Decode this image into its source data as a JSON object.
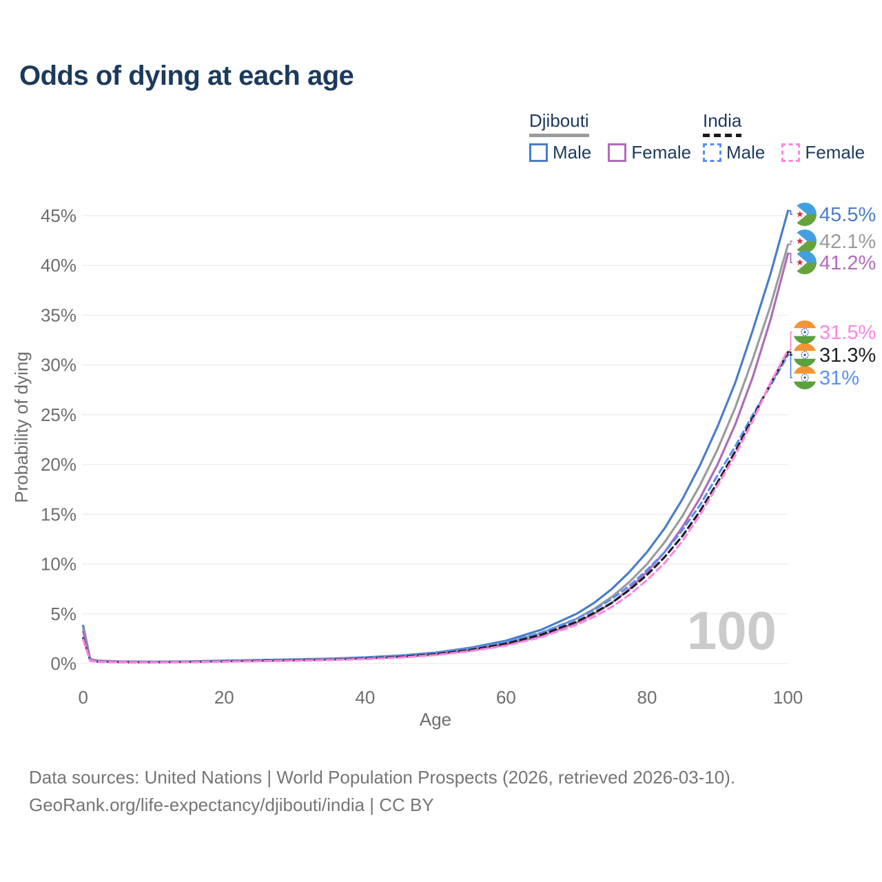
{
  "page": {
    "title": "Odds of dying at each age"
  },
  "legend": {
    "groups": [
      {
        "country": "Djibouti",
        "underline": "solid",
        "underline_color": "#9b9b9b",
        "items": [
          {
            "label": "Male",
            "color": "#4a7dc9",
            "dash": false
          },
          {
            "label": "Female",
            "color": "#b06cb8",
            "dash": false
          }
        ]
      },
      {
        "country": "India",
        "underline": "dashed",
        "underline_color": "#1a1a1a",
        "items": [
          {
            "label": "Male",
            "color": "#5b8ff2",
            "dash": true
          },
          {
            "label": "Female",
            "color": "#ff85e2",
            "dash": true
          }
        ]
      }
    ]
  },
  "chart_data": {
    "type": "line",
    "title": "Odds of dying at each age",
    "xlabel": "Age",
    "ylabel": "Probability of dying",
    "xlim": [
      0,
      100
    ],
    "ylim": [
      0,
      45
    ],
    "grid": "horizontal",
    "legend_position": "top-right",
    "watermark": "100",
    "x_ticks": [
      {
        "v": 0,
        "label": "0"
      },
      {
        "v": 20,
        "label": "20"
      },
      {
        "v": 40,
        "label": "40"
      },
      {
        "v": 60,
        "label": "60"
      },
      {
        "v": 80,
        "label": "80"
      },
      {
        "v": 100,
        "label": "100"
      }
    ],
    "y_ticks": [
      {
        "v": 0,
        "label": "0%"
      },
      {
        "v": 5,
        "label": "5%"
      },
      {
        "v": 10,
        "label": "10%"
      },
      {
        "v": 15,
        "label": "15%"
      },
      {
        "v": 20,
        "label": "20%"
      },
      {
        "v": 25,
        "label": "25%"
      },
      {
        "v": 30,
        "label": "30%"
      },
      {
        "v": 35,
        "label": "35%"
      },
      {
        "v": 40,
        "label": "40%"
      },
      {
        "v": 45,
        "label": "45%"
      }
    ],
    "x": [
      0,
      1,
      2,
      5,
      10,
      15,
      20,
      25,
      30,
      35,
      40,
      45,
      50,
      55,
      60,
      65,
      70,
      72.5,
      75,
      77.5,
      80,
      82.5,
      85,
      87.5,
      90,
      92.5,
      95,
      97.5,
      100
    ],
    "series": [
      {
        "id": "djibouti-male",
        "name": "Djibouti Male",
        "color": "#4a7dc9",
        "dash": false,
        "flag": "djibouti",
        "end_label": "45.5%",
        "end_value": 45.5,
        "values": [
          3.8,
          0.45,
          0.3,
          0.22,
          0.18,
          0.22,
          0.3,
          0.36,
          0.42,
          0.5,
          0.62,
          0.8,
          1.1,
          1.6,
          2.3,
          3.4,
          5.0,
          6.1,
          7.5,
          9.2,
          11.2,
          13.6,
          16.5,
          19.9,
          23.8,
          28.2,
          33.5,
          39.1,
          45.5
        ]
      },
      {
        "id": "djibouti-both",
        "name": "Djibouti Both sexes",
        "color": "#9b9b9b",
        "dash": false,
        "flag": "djibouti",
        "end_label": "42.1%",
        "end_value": 42.1,
        "values": [
          3.5,
          0.42,
          0.28,
          0.2,
          0.17,
          0.2,
          0.27,
          0.32,
          0.38,
          0.46,
          0.57,
          0.73,
          1.0,
          1.45,
          2.1,
          3.05,
          4.5,
          5.5,
          6.7,
          8.2,
          10.0,
          12.2,
          14.8,
          17.9,
          21.5,
          25.7,
          30.6,
          35.9,
          42.1
        ]
      },
      {
        "id": "djibouti-female",
        "name": "Djibouti Female",
        "color": "#b06cb8",
        "dash": false,
        "flag": "djibouti",
        "end_label": "41.2%",
        "end_value": 41.2,
        "values": [
          3.2,
          0.38,
          0.26,
          0.19,
          0.15,
          0.18,
          0.24,
          0.29,
          0.34,
          0.42,
          0.52,
          0.66,
          0.9,
          1.3,
          1.9,
          2.75,
          4.1,
          5.0,
          6.1,
          7.5,
          9.2,
          11.2,
          13.7,
          16.6,
          20.0,
          24.0,
          28.8,
          34.5,
          41.2
        ]
      },
      {
        "id": "india-male",
        "name": "India Male",
        "color": "#5b8ff2",
        "dash": true,
        "flag": "india",
        "end_label": "31%",
        "end_value": 31.0,
        "values": [
          2.6,
          0.3,
          0.2,
          0.15,
          0.13,
          0.17,
          0.24,
          0.29,
          0.35,
          0.44,
          0.57,
          0.75,
          1.05,
          1.5,
          2.15,
          3.1,
          4.5,
          5.4,
          6.5,
          7.8,
          9.4,
          11.2,
          13.4,
          15.9,
          18.9,
          21.8,
          25.0,
          27.9,
          31.0
        ]
      },
      {
        "id": "india-both",
        "name": "India Both sexes",
        "color": "#1f1f1f",
        "dash": true,
        "flag": "india",
        "end_label": "31.3%",
        "end_value": 31.3,
        "values": [
          2.5,
          0.28,
          0.19,
          0.14,
          0.12,
          0.15,
          0.21,
          0.26,
          0.31,
          0.39,
          0.5,
          0.67,
          0.95,
          1.38,
          2.0,
          2.9,
          4.2,
          5.1,
          6.1,
          7.4,
          8.9,
          10.7,
          12.8,
          15.3,
          18.2,
          21.3,
          24.7,
          28.1,
          31.3
        ]
      },
      {
        "id": "india-female",
        "name": "India Female",
        "color": "#ff85e2",
        "dash": true,
        "flag": "india",
        "end_label": "31.5%",
        "end_value": 31.5,
        "values": [
          2.4,
          0.27,
          0.18,
          0.13,
          0.11,
          0.14,
          0.19,
          0.23,
          0.28,
          0.35,
          0.45,
          0.6,
          0.85,
          1.25,
          1.8,
          2.65,
          3.9,
          4.7,
          5.7,
          6.9,
          8.4,
          10.1,
          12.3,
          14.9,
          17.9,
          20.9,
          24.4,
          28.2,
          31.5
        ]
      }
    ]
  },
  "footer": {
    "line1": "Data sources: United Nations | World Population Prospects (2026, retrieved 2026-03-10).",
    "line2": "GeoRank.org/life-expectancy/djibouti/india | CC BY"
  }
}
